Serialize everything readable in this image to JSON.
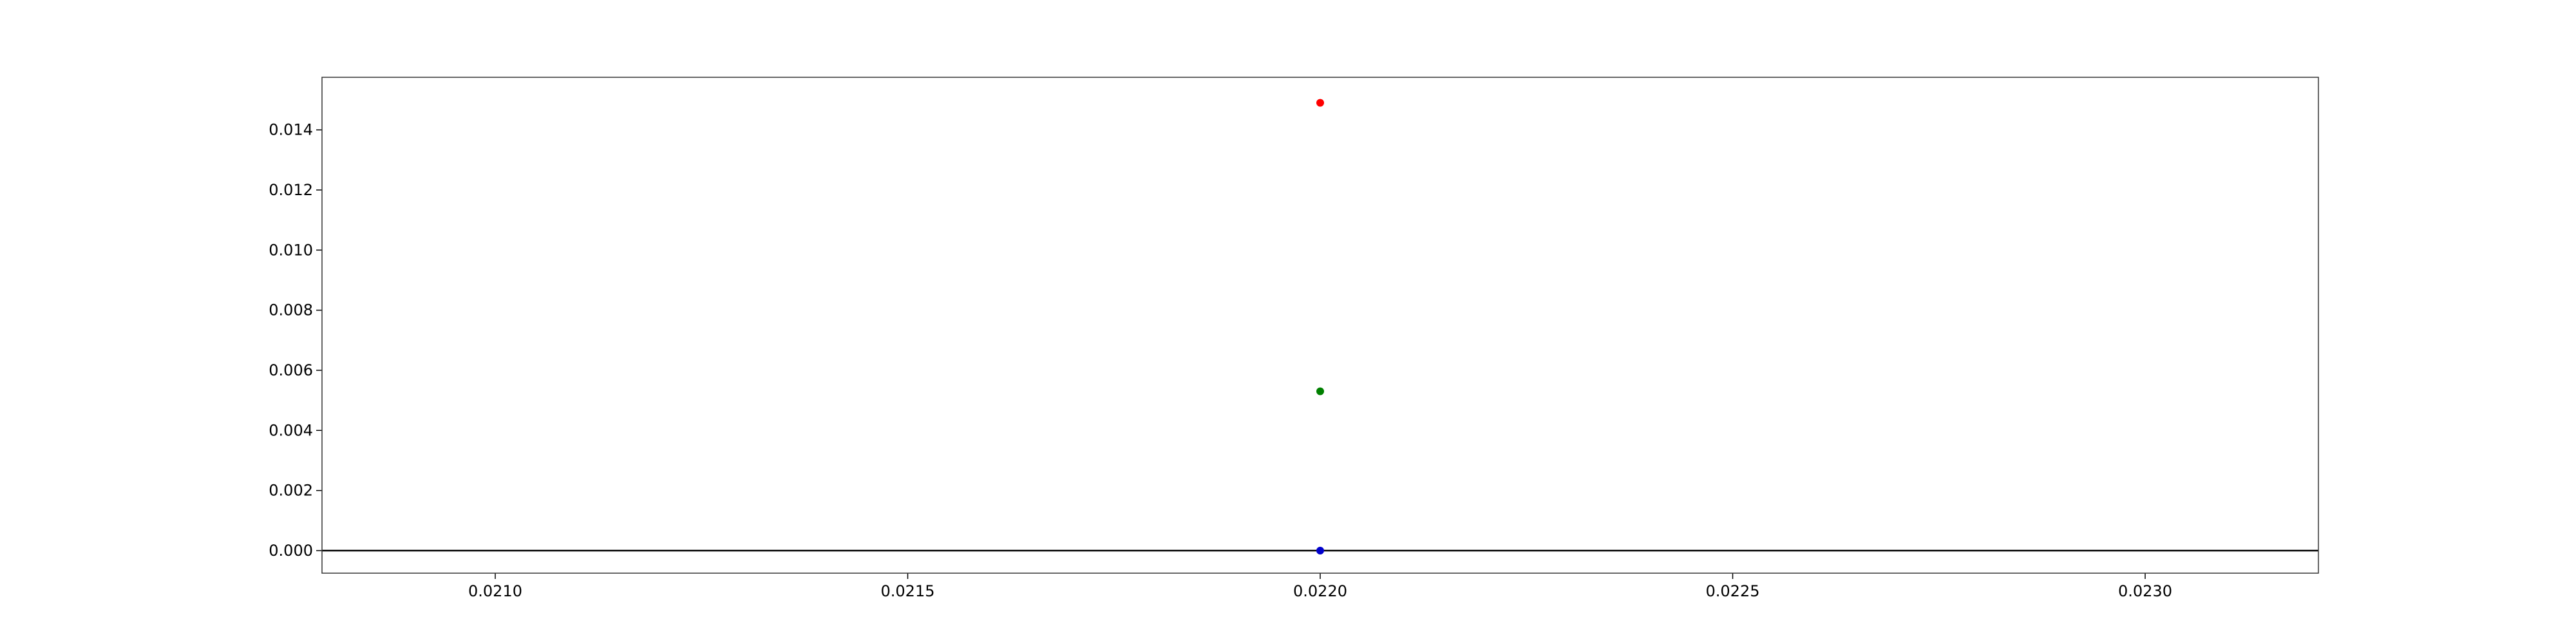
{
  "chart_data": {
    "type": "scatter",
    "title": "",
    "xlabel": "",
    "ylabel": "",
    "xlim": [
      0.02079,
      0.02321
    ],
    "ylim": [
      -0.00075,
      0.01575
    ],
    "x_ticks": [
      "0.0210",
      "0.0215",
      "0.0220",
      "0.0225",
      "0.0230"
    ],
    "y_ticks": [
      "0.000",
      "0.002",
      "0.004",
      "0.006",
      "0.008",
      "0.010",
      "0.012",
      "0.014"
    ],
    "grid": false,
    "legend": "none",
    "reference_line": {
      "y": 0,
      "color": "#000000"
    },
    "series": [
      {
        "color": "#ff0000",
        "points": [
          {
            "x": 0.022,
            "y": 0.0149
          }
        ]
      },
      {
        "color": "#008000",
        "points": [
          {
            "x": 0.022,
            "y": 0.0053
          }
        ]
      },
      {
        "color": "#0000cc",
        "points": [
          {
            "x": 0.022,
            "y": 0.0
          }
        ]
      }
    ]
  }
}
